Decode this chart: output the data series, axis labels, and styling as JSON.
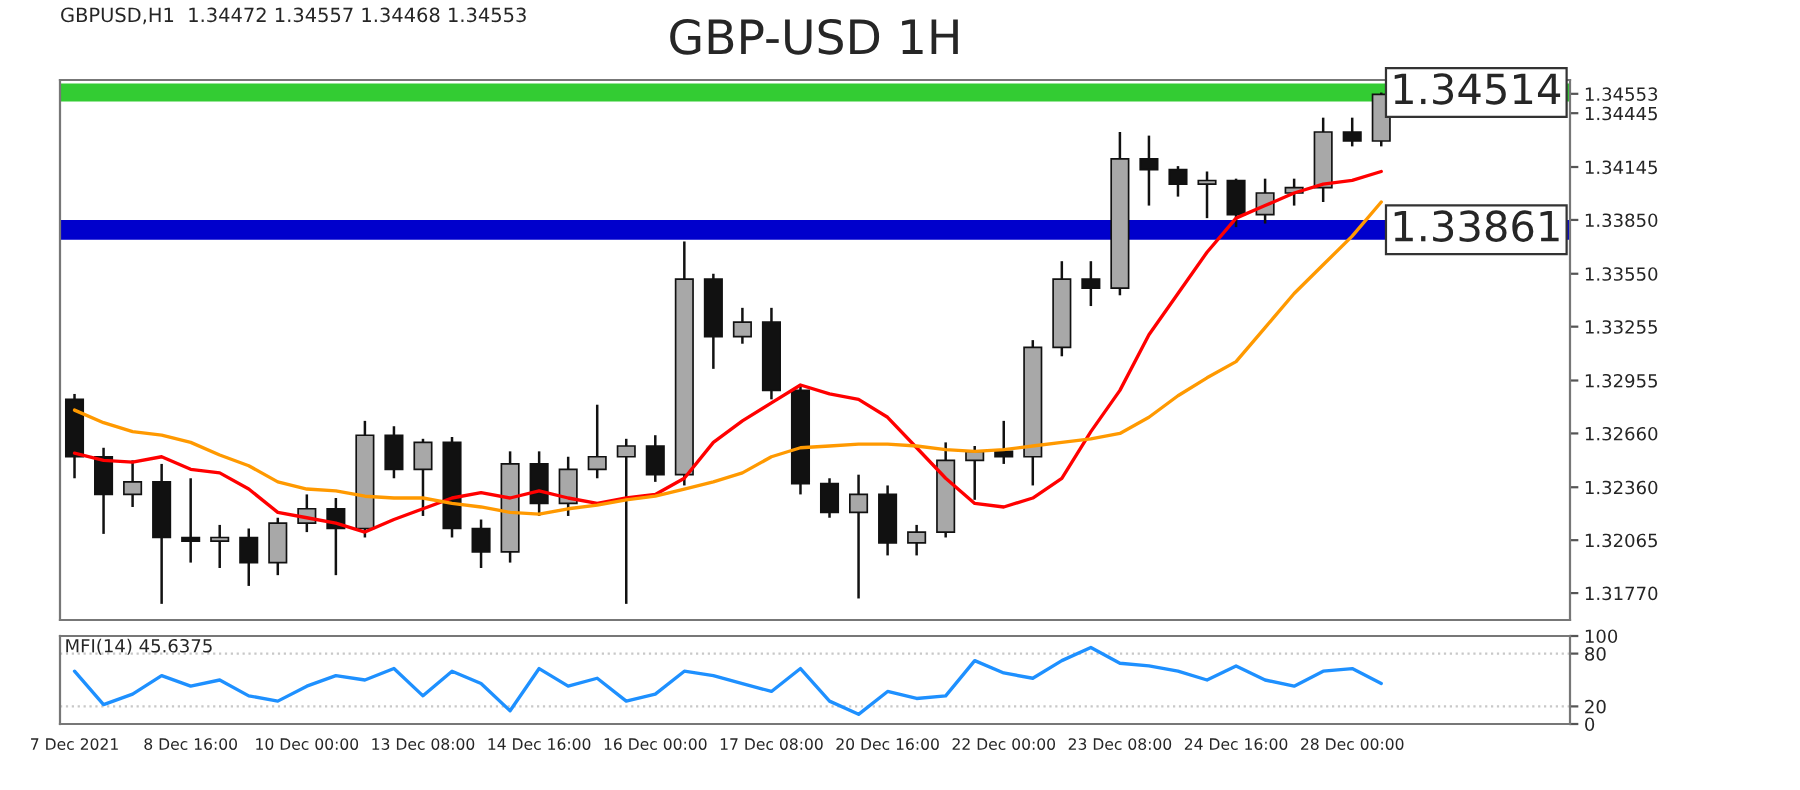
{
  "chart_data": [
    {
      "type": "candlestick",
      "title": "GBP-USD 1H",
      "subtitle": "GBPUSD,H1  1.34472 1.34557 1.34468 1.34553",
      "categories": [
        null,
        null,
        null,
        null,
        null,
        null,
        null,
        null,
        null,
        null,
        null,
        null,
        null,
        null,
        null,
        null,
        null,
        null,
        null,
        null,
        null,
        null,
        null,
        null,
        null,
        null,
        null,
        null,
        null,
        null,
        null,
        null,
        null,
        null,
        null,
        null,
        null,
        null,
        null,
        null,
        null,
        null,
        null,
        null,
        null,
        null,
        null,
        null,
        null,
        null,
        null,
        null
      ],
      "ohlc": [
        [
          1.3285,
          1.3288,
          1.3241,
          1.3253
        ],
        [
          1.3253,
          1.3258,
          1.321,
          1.3232
        ],
        [
          1.3232,
          1.3251,
          1.3225,
          1.3239
        ],
        [
          1.3239,
          1.3249,
          1.3171,
          1.3208
        ],
        [
          1.3208,
          1.3241,
          1.3194,
          1.3206
        ],
        [
          1.3206,
          1.3215,
          1.3191,
          1.3208
        ],
        [
          1.3208,
          1.3213,
          1.3181,
          1.3194
        ],
        [
          1.3194,
          1.3219,
          1.3187,
          1.3216
        ],
        [
          1.3216,
          1.3232,
          1.3211,
          1.3224
        ],
        [
          1.3224,
          1.323,
          1.3187,
          1.3213
        ],
        [
          1.3213,
          1.3273,
          1.3208,
          1.3265
        ],
        [
          1.3265,
          1.327,
          1.3241,
          1.3246
        ],
        [
          1.3246,
          1.3263,
          1.322,
          1.3261
        ],
        [
          1.3261,
          1.3264,
          1.3208,
          1.3213
        ],
        [
          1.3213,
          1.3218,
          1.3191,
          1.32
        ],
        [
          1.32,
          1.3256,
          1.3194,
          1.3249
        ],
        [
          1.3249,
          1.3256,
          1.322,
          1.3227
        ],
        [
          1.3227,
          1.3253,
          1.322,
          1.3246
        ],
        [
          1.3246,
          1.3282,
          1.3241,
          1.3253
        ],
        [
          1.3253,
          1.3263,
          1.3171,
          1.3259
        ],
        [
          1.3259,
          1.3265,
          1.3239,
          1.3243
        ],
        [
          1.3243,
          1.3373,
          1.3237,
          1.3352
        ],
        [
          1.3352,
          1.3355,
          1.3302,
          1.332
        ],
        [
          1.332,
          1.3336,
          1.3316,
          1.3328
        ],
        [
          1.3328,
          1.3336,
          1.3285,
          1.329
        ],
        [
          1.329,
          1.3292,
          1.3232,
          1.3238
        ],
        [
          1.3238,
          1.3241,
          1.3219,
          1.3222
        ],
        [
          1.3222,
          1.3243,
          1.3174,
          1.3232
        ],
        [
          1.3232,
          1.3237,
          1.3198,
          1.3205
        ],
        [
          1.3205,
          1.3215,
          1.3198,
          1.3211
        ],
        [
          1.3211,
          1.3261,
          1.3208,
          1.3251
        ],
        [
          1.3251,
          1.3259,
          1.3229,
          1.3256
        ],
        [
          1.3256,
          1.3273,
          1.3249,
          1.3253
        ],
        [
          1.3253,
          1.3318,
          1.3237,
          1.3314
        ],
        [
          1.3314,
          1.3362,
          1.3309,
          1.3352
        ],
        [
          1.3352,
          1.3362,
          1.3337,
          1.3347
        ],
        [
          1.3347,
          1.3434,
          1.3343,
          1.3419
        ],
        [
          1.3419,
          1.3432,
          1.3393,
          1.3413
        ],
        [
          1.3413,
          1.3415,
          1.3398,
          1.3405
        ],
        [
          1.3405,
          1.3412,
          1.3386,
          1.3407
        ],
        [
          1.3407,
          1.3408,
          1.3381,
          1.3388
        ],
        [
          1.3388,
          1.3408,
          1.3383,
          1.34
        ],
        [
          1.34,
          1.3408,
          1.3393,
          1.3403
        ],
        [
          1.3403,
          1.3442,
          1.3395,
          1.3434
        ],
        [
          1.3434,
          1.3442,
          1.3426,
          1.3429
        ],
        [
          1.3429,
          1.3456,
          1.3426,
          1.3455
        ],
        null,
        null,
        null,
        null,
        null,
        null
      ],
      "series": [
        {
          "type": "line",
          "color": "#ff0000",
          "values": [
            1.3255,
            1.3251,
            1.325,
            1.3253,
            1.3246,
            1.3244,
            1.3235,
            1.3222,
            1.3219,
            1.3216,
            1.3211,
            1.3218,
            1.3224,
            1.323,
            1.3233,
            1.323,
            1.3234,
            1.323,
            1.3227,
            1.323,
            1.3232,
            1.3241,
            1.3261,
            1.3273,
            1.3283,
            1.3293,
            1.3288,
            1.3285,
            1.3275,
            1.3258,
            1.3241,
            1.3227,
            1.3225,
            1.323,
            1.3241,
            1.3267,
            1.329,
            1.3321,
            1.3344,
            1.3367,
            1.3386,
            1.3393,
            1.34,
            1.3405,
            1.3407,
            1.3412,
            null,
            null,
            null,
            null,
            null,
            null
          ]
        },
        {
          "type": "line",
          "color": "#ff9900",
          "values": [
            1.3279,
            1.3272,
            1.3267,
            1.3265,
            1.3261,
            1.3254,
            1.3248,
            1.3239,
            1.3235,
            1.3234,
            1.3231,
            1.323,
            1.323,
            1.3227,
            1.3225,
            1.3222,
            1.3221,
            1.3224,
            1.3226,
            1.3229,
            1.3231,
            1.3235,
            1.3239,
            1.3244,
            1.3253,
            1.3258,
            1.3259,
            1.326,
            1.326,
            1.3259,
            1.3257,
            1.3256,
            1.3257,
            1.3259,
            1.3261,
            1.3263,
            1.3266,
            1.3275,
            1.3287,
            1.3297,
            1.3306,
            1.3325,
            1.3344,
            1.336,
            1.3376,
            1.3395,
            null,
            null,
            null,
            null,
            null,
            null
          ]
        }
      ],
      "ylim": [
        1.3162,
        1.3463
      ],
      "yticks": [
        {
          "value": 1.3177,
          "label": "1.31770"
        },
        {
          "value": 1.32065,
          "label": "1.32065"
        },
        {
          "value": 1.3236,
          "label": "1.32360"
        },
        {
          "value": 1.3266,
          "label": "1.32660"
        },
        {
          "value": 1.32955,
          "label": "1.32955"
        },
        {
          "value": 1.33255,
          "label": "1.33255"
        },
        {
          "value": 1.3355,
          "label": "1.33550"
        },
        {
          "value": 1.3385,
          "label": "1.33850"
        },
        {
          "value": 1.34145,
          "label": "1.34145"
        },
        {
          "value": 1.34445,
          "label": "1.34445"
        },
        {
          "value": 1.34553,
          "label": "1.34553"
        }
      ],
      "bands": [
        {
          "axis": "y",
          "from": 1.3451,
          "to": 1.3461,
          "label": "1.34514",
          "color": "#33cc33"
        },
        {
          "axis": "y",
          "from": 1.3374,
          "to": 1.3385,
          "label": "1.33861",
          "color": "#0000cc"
        }
      ],
      "tick_labels": "y",
      "grid": false,
      "legend": false
    },
    {
      "type": "line",
      "title": "MFI(14) 45.6375",
      "categories": [
        "7 Dec 2021",
        null,
        null,
        null,
        "8 Dec 16:00",
        null,
        null,
        null,
        "10 Dec 00:00",
        null,
        null,
        null,
        "13 Dec 08:00",
        null,
        null,
        null,
        "14 Dec 16:00",
        null,
        null,
        null,
        "16 Dec 00:00",
        null,
        null,
        null,
        "17 Dec 08:00",
        null,
        null,
        null,
        "20 Dec 16:00",
        null,
        null,
        null,
        "22 Dec 00:00",
        null,
        null,
        null,
        "23 Dec 08:00",
        null,
        null,
        null,
        "24 Dec 16:00",
        null,
        null,
        null,
        "28 Dec 00:00",
        null,
        null,
        null,
        null,
        null,
        null,
        null
      ],
      "series": [
        {
          "color": "#1e90ff",
          "values": [
            60,
            22,
            34,
            55,
            43,
            50,
            32,
            26,
            43,
            55,
            50,
            63,
            32,
            60,
            46,
            15,
            63,
            43,
            52,
            26,
            34,
            60,
            55,
            46,
            37,
            63,
            26,
            11,
            37,
            29,
            32,
            72,
            58,
            52,
            72,
            87,
            69,
            66,
            60,
            50,
            66,
            50,
            43,
            60,
            63,
            46,
            null,
            null,
            null,
            null,
            null,
            null
          ]
        }
      ],
      "ylim": [
        0,
        100
      ],
      "yticks": [
        0,
        20,
        80,
        100
      ],
      "ref_lines": [
        {
          "axis": "y",
          "value": 20,
          "color": "#c8c8c8",
          "line_style": "dotted"
        },
        {
          "axis": "y",
          "value": 80,
          "color": "#c8c8c8",
          "line_style": "dotted"
        }
      ],
      "grid": false,
      "legend": false
    }
  ]
}
